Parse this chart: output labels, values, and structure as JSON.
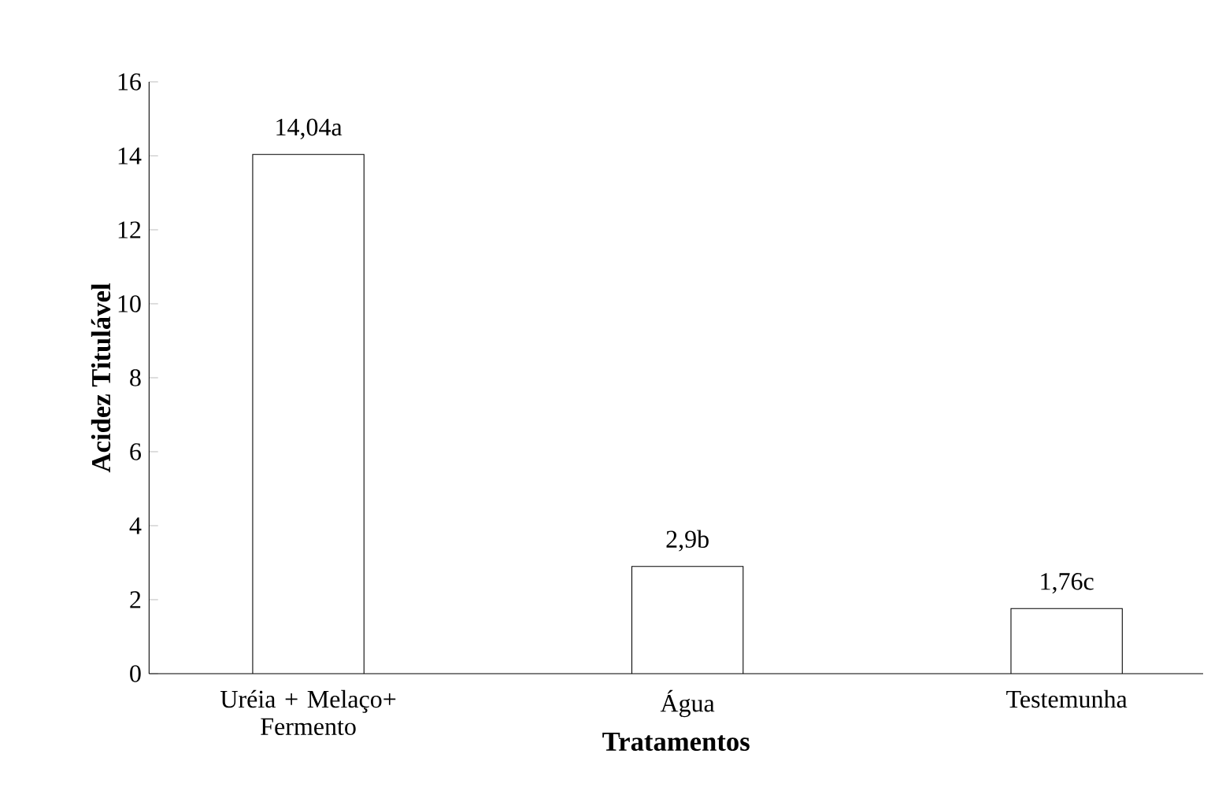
{
  "chart_data": {
    "type": "bar",
    "xlabel": "Tratamentos",
    "ylabel": "Acidez Titulável",
    "categories": [
      "Uréia + Melaço+ Fermento",
      "Água",
      "Testemunha"
    ],
    "values": [
      14.04,
      2.9,
      1.76
    ],
    "value_labels": [
      "14,04a",
      "2,9b",
      "1,76c"
    ],
    "color": "#ffffff",
    "ylim": [
      0,
      16
    ],
    "yticks": [
      0,
      2,
      4,
      6,
      8,
      10,
      12,
      14,
      16
    ],
    "grid": false
  }
}
